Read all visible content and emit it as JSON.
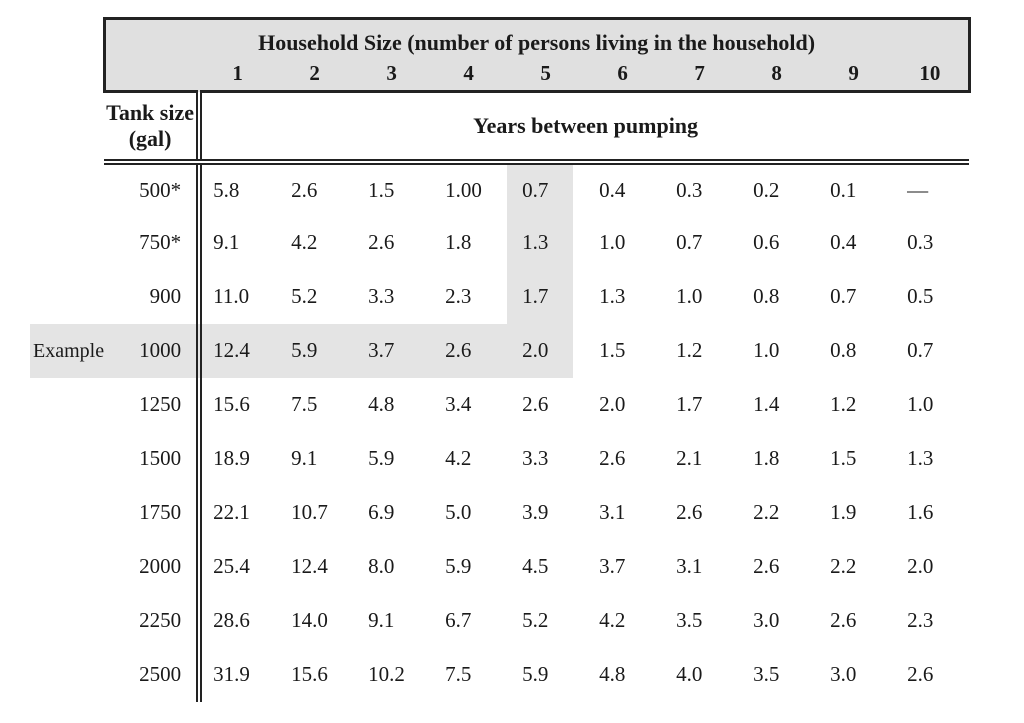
{
  "header": {
    "title": "Household Size (number of persons living in the household)",
    "columns": [
      "1",
      "2",
      "3",
      "4",
      "5",
      "6",
      "7",
      "8",
      "9",
      "10"
    ],
    "tank_line1": "Tank size",
    "tank_line2": "(gal)",
    "sub_title": "Years between pumping"
  },
  "rows": [
    {
      "example": "",
      "tank": "500*",
      "values": [
        "5.8",
        "2.6",
        "1.5",
        "1.00",
        "0.7",
        "0.4",
        "0.3",
        "0.2",
        "0.1",
        "—"
      ]
    },
    {
      "example": "",
      "tank": "750*",
      "values": [
        "9.1",
        "4.2",
        "2.6",
        "1.8",
        "1.3",
        "1.0",
        "0.7",
        "0.6",
        "0.4",
        "0.3"
      ]
    },
    {
      "example": "",
      "tank": "900",
      "values": [
        "11.0",
        "5.2",
        "3.3",
        "2.3",
        "1.7",
        "1.3",
        "1.0",
        "0.8",
        "0.7",
        "0.5"
      ]
    },
    {
      "example": "Example",
      "tank": "1000",
      "values": [
        "12.4",
        "5.9",
        "3.7",
        "2.6",
        "2.0",
        "1.5",
        "1.2",
        "1.0",
        "0.8",
        "0.7"
      ]
    },
    {
      "example": "",
      "tank": "1250",
      "values": [
        "15.6",
        "7.5",
        "4.8",
        "3.4",
        "2.6",
        "2.0",
        "1.7",
        "1.4",
        "1.2",
        "1.0"
      ]
    },
    {
      "example": "",
      "tank": "1500",
      "values": [
        "18.9",
        "9.1",
        "5.9",
        "4.2",
        "3.3",
        "2.6",
        "2.1",
        "1.8",
        "1.5",
        "1.3"
      ]
    },
    {
      "example": "",
      "tank": "1750",
      "values": [
        "22.1",
        "10.7",
        "6.9",
        "5.0",
        "3.9",
        "3.1",
        "2.6",
        "2.2",
        "1.9",
        "1.6"
      ]
    },
    {
      "example": "",
      "tank": "2000",
      "values": [
        "25.4",
        "12.4",
        "8.0",
        "5.9",
        "4.5",
        "3.7",
        "3.1",
        "2.6",
        "2.2",
        "2.0"
      ]
    },
    {
      "example": "",
      "tank": "2250",
      "values": [
        "28.6",
        "14.0",
        "9.1",
        "6.7",
        "5.2",
        "4.2",
        "3.5",
        "3.0",
        "2.6",
        "2.3"
      ]
    },
    {
      "example": "",
      "tank": "2500",
      "values": [
        "31.9",
        "15.6",
        "10.2",
        "7.5",
        "5.9",
        "4.8",
        "4.0",
        "3.5",
        "3.0",
        "2.6"
      ]
    }
  ],
  "example_highlight": {
    "row_index": 3,
    "col_index": 4
  },
  "colors": {
    "header_bg": "#e0e0e0",
    "highlight_bg": "#e4e4e4",
    "border": "#222222"
  }
}
